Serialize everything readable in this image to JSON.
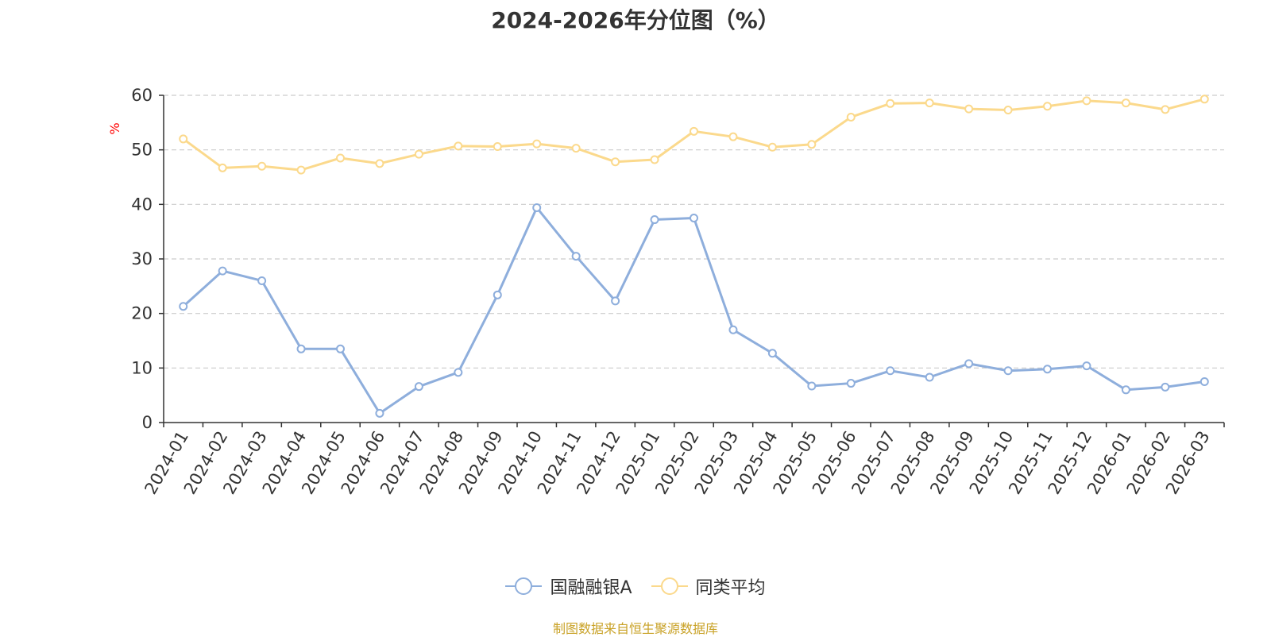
{
  "chart_data": {
    "type": "line",
    "title": "2024-2026年分位图（%）",
    "ylabel": "%",
    "ylim": [
      0,
      60
    ],
    "yticks": [
      0,
      10,
      20,
      30,
      40,
      50,
      60
    ],
    "grid": true,
    "legend_position": "bottom-center",
    "categories": [
      "2024-01",
      "2024-02",
      "2024-03",
      "2024-04",
      "2024-05",
      "2024-06",
      "2024-07",
      "2024-08",
      "2024-09",
      "2024-10",
      "2024-11",
      "2024-12",
      "2025-01",
      "2025-02",
      "2025-03",
      "2025-04",
      "2025-05",
      "2025-06",
      "2025-07",
      "2025-08",
      "2025-09",
      "2025-10",
      "2025-11",
      "2025-12",
      "2026-01",
      "2026-02",
      "2026-03"
    ],
    "series": [
      {
        "name": "国融融银A",
        "color": "#8eaedc",
        "values": [
          21.3,
          27.8,
          26.0,
          13.5,
          13.5,
          1.7,
          6.6,
          9.2,
          23.4,
          39.4,
          30.5,
          22.3,
          37.2,
          37.5,
          17.0,
          12.7,
          6.7,
          7.2,
          9.5,
          8.3,
          10.8,
          9.5,
          9.8,
          10.4,
          6.0,
          6.5,
          7.5
        ]
      },
      {
        "name": "同类平均",
        "color": "#fbd98c",
        "values": [
          52.0,
          46.7,
          47.0,
          46.3,
          48.5,
          47.5,
          49.2,
          50.7,
          50.6,
          51.1,
          50.3,
          47.8,
          48.2,
          53.4,
          52.4,
          50.5,
          51.0,
          56.0,
          58.5,
          58.6,
          57.5,
          57.3,
          58.0,
          59.0,
          58.6,
          57.4,
          59.3
        ]
      }
    ]
  },
  "source_text": "制图数据来自恒生聚源数据库"
}
